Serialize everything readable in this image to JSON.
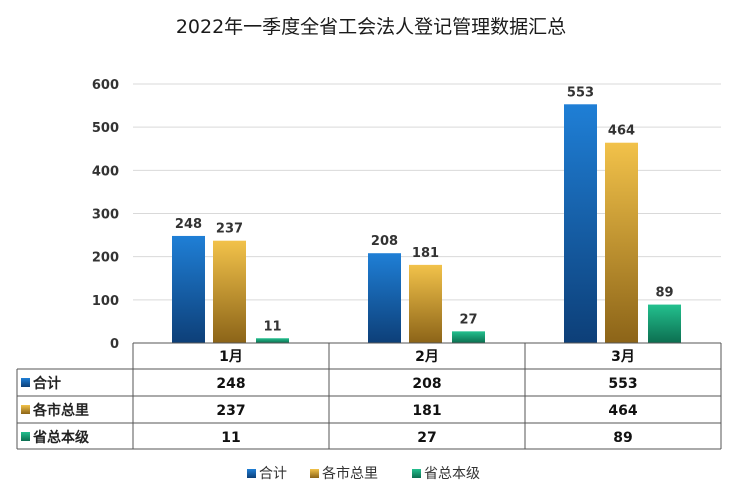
{
  "chart_data": {
    "type": "bar",
    "title": "2022年一季度全省工会法人登记管理数据汇总",
    "categories": [
      "1月",
      "2月",
      "3月"
    ],
    "series": [
      {
        "name": "合计",
        "values": [
          248,
          208,
          553
        ],
        "color": "#1565c0"
      },
      {
        "name": "各市总里",
        "values": [
          237,
          181,
          464
        ],
        "color": "#e0a020"
      },
      {
        "name": "省总本级",
        "values": [
          11,
          27,
          89
        ],
        "color": "#1aa37a"
      }
    ],
    "ylim": [
      0,
      600
    ],
    "yticks": [
      0,
      100,
      200,
      300,
      400,
      500,
      600
    ],
    "grid": true,
    "legend": "bottom",
    "data_table": true
  }
}
